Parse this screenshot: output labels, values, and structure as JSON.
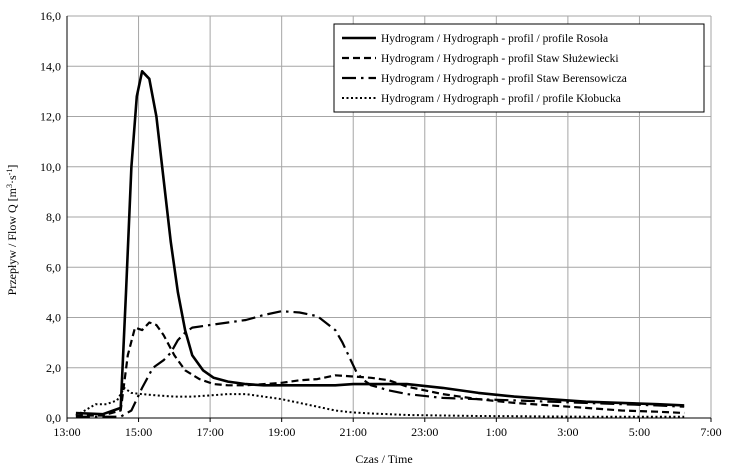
{
  "chart_data": {
    "type": "line",
    "title": "",
    "xlabel": "Czas / Time",
    "ylabel": "Przepływ / Flow Q [m",
    "ylabel_unit_sup1": "3",
    "ylabel_unit_mid": "·s",
    "ylabel_unit_sup2": "-1",
    "ylabel_unit_end": "]",
    "xlim": [
      13.5,
      31
    ],
    "ylim": [
      0,
      16
    ],
    "x_ticks": [
      13.5,
      15.5,
      17.5,
      19.5,
      21.5,
      23.5,
      25.5,
      27.5,
      29.5,
      31.5
    ],
    "x_tick_labels": [
      "13:00",
      "15:00",
      "17:00",
      "19:00",
      "21:00",
      "23:00",
      "1:00",
      "3:00",
      "5:00",
      "7:00"
    ],
    "y_ticks": [
      0,
      2,
      4,
      6,
      8,
      10,
      12,
      14,
      16
    ],
    "y_tick_labels": [
      "0,0",
      "2,0",
      "4,0",
      "6,0",
      "8,0",
      "10,0",
      "12,0",
      "14,0",
      "16,0"
    ],
    "grid": true,
    "legend_position": "top-right",
    "series": [
      {
        "name": "Hydrogram / Hydrograph - profil / profile Rosoła",
        "dash": "solid",
        "x": [
          13.75,
          14.5,
          15.0,
          15.15,
          15.3,
          15.45,
          15.6,
          15.8,
          16.0,
          16.2,
          16.4,
          16.6,
          16.8,
          17.0,
          17.3,
          17.6,
          18.0,
          18.5,
          19.0,
          20.0,
          21.0,
          21.5,
          22.0,
          23.0,
          24.0,
          25.0,
          26.0,
          27.0,
          28.0,
          29.0,
          30.0,
          30.75
        ],
        "y": [
          0.2,
          0.15,
          0.4,
          5.0,
          10.0,
          12.8,
          13.8,
          13.5,
          12.0,
          9.5,
          7.0,
          5.0,
          3.5,
          2.5,
          1.9,
          1.6,
          1.45,
          1.35,
          1.3,
          1.3,
          1.3,
          1.35,
          1.35,
          1.35,
          1.2,
          1.0,
          0.85,
          0.75,
          0.65,
          0.6,
          0.55,
          0.5
        ]
      },
      {
        "name": "Hydrogram / Hydrograph - profil Staw Służewiecki",
        "dash": "dash",
        "x": [
          13.75,
          14.5,
          15.0,
          15.2,
          15.4,
          15.6,
          15.8,
          16.0,
          16.2,
          16.5,
          16.8,
          17.2,
          17.6,
          18.0,
          18.5,
          19.0,
          19.5,
          20.0,
          20.5,
          21.0,
          21.5,
          22.0,
          22.5,
          23.0,
          24.0,
          25.0,
          26.0,
          27.0,
          28.0,
          29.0,
          30.0,
          30.75
        ],
        "y": [
          0.1,
          0.1,
          0.3,
          2.5,
          3.6,
          3.5,
          3.8,
          3.7,
          3.3,
          2.5,
          1.9,
          1.55,
          1.35,
          1.3,
          1.3,
          1.35,
          1.4,
          1.5,
          1.55,
          1.7,
          1.65,
          1.6,
          1.5,
          1.25,
          0.95,
          0.75,
          0.6,
          0.5,
          0.4,
          0.3,
          0.25,
          0.2
        ]
      },
      {
        "name": "Hydrogram / Hydrograph - profil Staw Berensowicza",
        "dash": "dashdot",
        "x": [
          13.75,
          15.0,
          15.3,
          15.6,
          15.9,
          16.2,
          16.4,
          16.6,
          16.8,
          17.0,
          17.5,
          18.0,
          18.5,
          19.0,
          19.5,
          20.0,
          20.5,
          21.0,
          21.2,
          21.4,
          21.6,
          21.8,
          22.0,
          22.5,
          23.0,
          24.0,
          25.0,
          26.0,
          27.0,
          28.0,
          29.0,
          30.0,
          30.75
        ],
        "y": [
          0.05,
          0.05,
          0.3,
          1.2,
          2.0,
          2.3,
          2.6,
          3.1,
          3.4,
          3.6,
          3.7,
          3.8,
          3.9,
          4.1,
          4.25,
          4.2,
          4.05,
          3.5,
          3.0,
          2.4,
          1.8,
          1.5,
          1.3,
          1.1,
          0.95,
          0.8,
          0.75,
          0.7,
          0.65,
          0.6,
          0.55,
          0.5,
          0.45
        ]
      },
      {
        "name": "Hydrogram / Hydrograph - profil / profile Kłobucka",
        "dash": "dot",
        "x": [
          13.75,
          14.0,
          14.3,
          14.6,
          14.9,
          15.1,
          15.3,
          15.6,
          16.0,
          16.5,
          17.0,
          17.5,
          18.0,
          18.5,
          19.0,
          19.5,
          20.0,
          20.5,
          21.0,
          21.5,
          22.0,
          22.5,
          23.0,
          24.0,
          25.0,
          26.0,
          27.0,
          28.0,
          29.0,
          30.0,
          30.75
        ],
        "y": [
          0.1,
          0.3,
          0.55,
          0.55,
          0.7,
          1.2,
          1.0,
          0.95,
          0.9,
          0.85,
          0.85,
          0.9,
          0.95,
          0.95,
          0.85,
          0.75,
          0.6,
          0.45,
          0.3,
          0.22,
          0.18,
          0.15,
          0.12,
          0.1,
          0.08,
          0.07,
          0.06,
          0.05,
          0.05,
          0.05,
          0.05
        ]
      }
    ]
  }
}
